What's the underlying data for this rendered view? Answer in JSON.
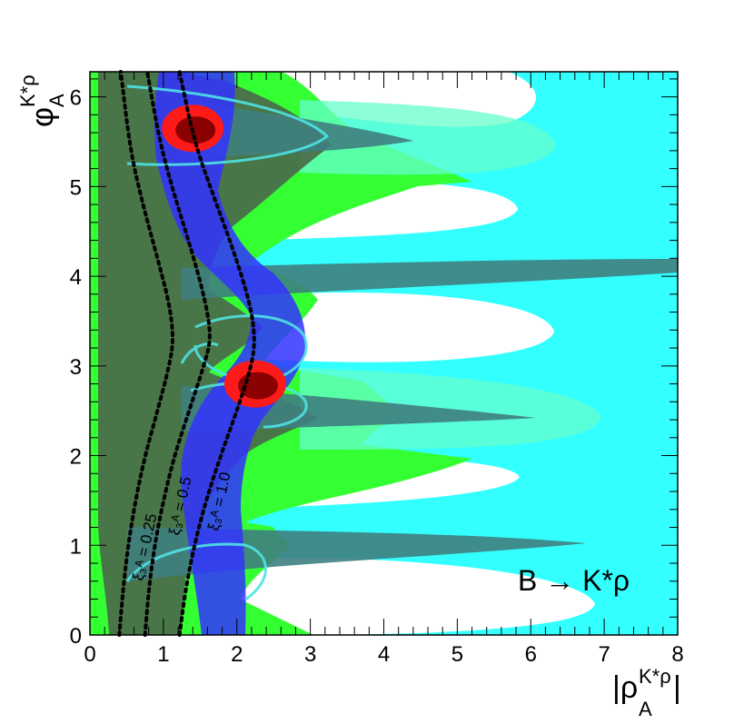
{
  "chart_data": {
    "type": "heatmap",
    "title": "",
    "xlabel": "|ρ_A^{K*ρ}|",
    "ylabel": "φ_A^{K*ρ}",
    "xlim": [
      0,
      8
    ],
    "ylim": [
      0,
      6.28
    ],
    "x_ticks": [
      "0",
      "1",
      "2",
      "3",
      "4",
      "5",
      "6",
      "7",
      "8"
    ],
    "y_ticks": [
      "0",
      "1",
      "2",
      "3",
      "4",
      "5",
      "6"
    ],
    "annotation": "B → K*ρ",
    "regions": [
      {
        "name": "light-green",
        "color": "#33ff33"
      },
      {
        "name": "dark-green",
        "color": "#4b6f4b"
      },
      {
        "name": "cyan",
        "color": "#33ffff"
      },
      {
        "name": "cyan-mid",
        "color": "#66ffcc"
      },
      {
        "name": "teal",
        "color": "#3f7f7f"
      },
      {
        "name": "blue-band",
        "color": "#3333ff"
      },
      {
        "name": "best-fit",
        "color": "#ff1a1a"
      }
    ],
    "best_fit_points": [
      {
        "x": 1.4,
        "y": 5.65
      },
      {
        "x": 2.25,
        "y": 2.8
      }
    ],
    "contours": [
      {
        "label": "ξ_3^A = 0.25",
        "points": [
          [
            0.4,
            0.0
          ],
          [
            0.45,
            0.5
          ],
          [
            0.52,
            1.0
          ],
          [
            0.62,
            1.5
          ],
          [
            0.75,
            2.0
          ],
          [
            0.92,
            2.5
          ],
          [
            1.08,
            3.0
          ],
          [
            1.14,
            3.3
          ],
          [
            1.08,
            3.7
          ],
          [
            0.92,
            4.2
          ],
          [
            0.72,
            4.8
          ],
          [
            0.55,
            5.4
          ],
          [
            0.42,
            6.28
          ]
        ]
      },
      {
        "label": "ξ_3^A = 0.5",
        "points": [
          [
            0.75,
            0.0
          ],
          [
            0.8,
            0.5
          ],
          [
            0.88,
            1.0
          ],
          [
            1.0,
            1.5
          ],
          [
            1.15,
            2.0
          ],
          [
            1.35,
            2.5
          ],
          [
            1.55,
            3.0
          ],
          [
            1.65,
            3.3
          ],
          [
            1.58,
            3.7
          ],
          [
            1.38,
            4.3
          ],
          [
            1.15,
            4.9
          ],
          [
            0.95,
            5.5
          ],
          [
            0.78,
            6.28
          ]
        ]
      },
      {
        "label": "ξ_3^A = 1.0",
        "points": [
          [
            1.22,
            0.0
          ],
          [
            1.3,
            0.5
          ],
          [
            1.42,
            1.0
          ],
          [
            1.58,
            1.5
          ],
          [
            1.78,
            2.0
          ],
          [
            2.0,
            2.5
          ],
          [
            2.2,
            3.0
          ],
          [
            2.25,
            3.3
          ],
          [
            2.18,
            3.7
          ],
          [
            1.95,
            4.3
          ],
          [
            1.68,
            4.9
          ],
          [
            1.42,
            5.5
          ],
          [
            1.22,
            6.28
          ]
        ]
      }
    ]
  }
}
